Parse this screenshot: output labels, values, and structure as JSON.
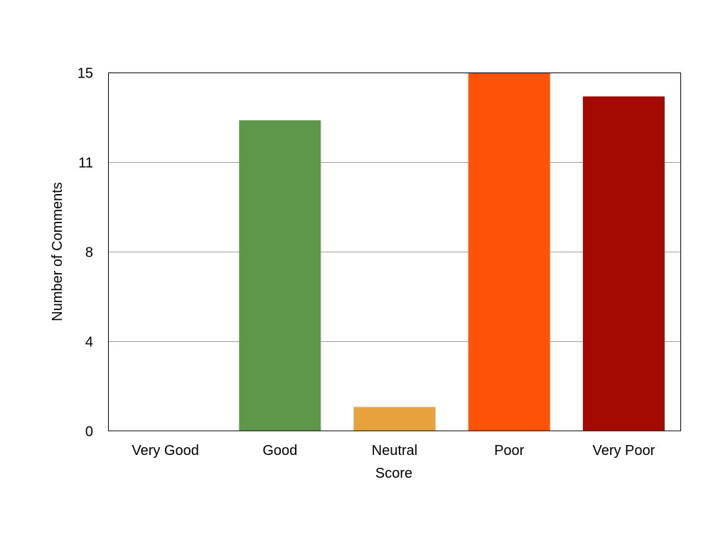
{
  "chart_data": {
    "type": "bar",
    "title": "",
    "xlabel": "Score",
    "ylabel": "Number of Comments",
    "categories": [
      "Very Good",
      "Good",
      "Neutral",
      "Poor",
      "Very Poor"
    ],
    "values": [
      0,
      13,
      1,
      15,
      14
    ],
    "colors": [
      "#5e964a",
      "#5e964a",
      "#e6a23c",
      "#ff5309",
      "#a30b02"
    ],
    "ylim": [
      0,
      15
    ],
    "yticks": [
      0,
      3.75,
      7.5,
      11.25,
      15
    ],
    "ytick_labels": [
      "0",
      "4",
      "8",
      "11",
      "15"
    ],
    "grid": true,
    "legend": "none"
  }
}
